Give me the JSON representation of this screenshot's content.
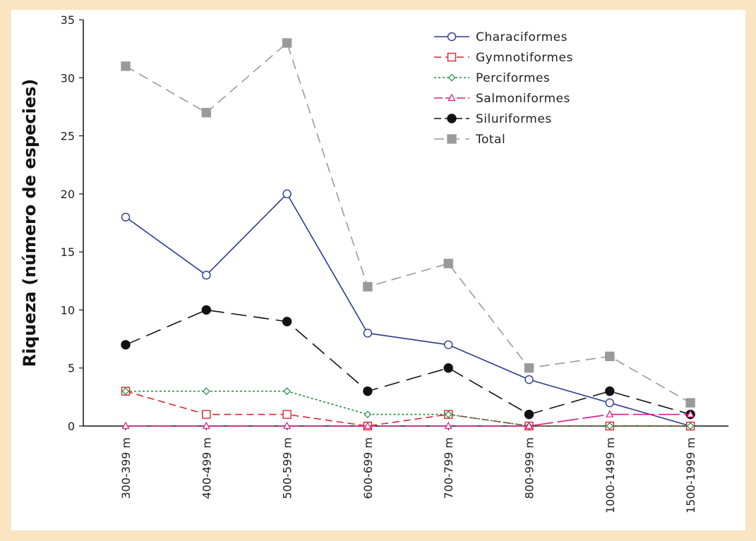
{
  "chart_data": {
    "type": "line",
    "title": "",
    "xlabel": "",
    "ylabel": "Riqueza (número de especies)",
    "ylim": [
      0,
      35
    ],
    "yticks": [
      0,
      5,
      10,
      15,
      20,
      25,
      30,
      35
    ],
    "grid": false,
    "legend_position": "top-right",
    "categories": [
      "300-399 m",
      "400-499 m",
      "500-599 m",
      "600-699 m",
      "700-799 m",
      "800-999 m",
      "1000-1499 m",
      "1500-1999 m"
    ],
    "series": [
      {
        "name": "Characiformes",
        "values": [
          18,
          13,
          20,
          8,
          7,
          4,
          2,
          0
        ],
        "color": "#2b3a8c",
        "dash": "",
        "marker": "circle-open"
      },
      {
        "name": "Gymnotiformes",
        "values": [
          3,
          1,
          1,
          0,
          1,
          0,
          0,
          0
        ],
        "color": "#d9262c",
        "dash": "10,6",
        "marker": "square-open"
      },
      {
        "name": "Perciformes",
        "values": [
          3,
          3,
          3,
          1,
          1,
          0,
          0,
          0
        ],
        "color": "#1a8a3c",
        "dash": "3,3",
        "marker": "diamond-open"
      },
      {
        "name": "Salmoniformes",
        "values": [
          0,
          0,
          0,
          0,
          0,
          0,
          1,
          1
        ],
        "color": "#d81b8c",
        "dash": "30,6",
        "marker": "triangle-open"
      },
      {
        "name": "Siluriformes",
        "values": [
          7,
          10,
          9,
          3,
          5,
          1,
          3,
          1
        ],
        "color": "#111111",
        "dash": "22,10",
        "marker": "circle-filled"
      },
      {
        "name": "Total",
        "values": [
          31,
          27,
          33,
          12,
          14,
          5,
          6,
          2
        ],
        "color": "#9a9a9a",
        "dash": "14,8",
        "marker": "square-filled"
      }
    ]
  }
}
